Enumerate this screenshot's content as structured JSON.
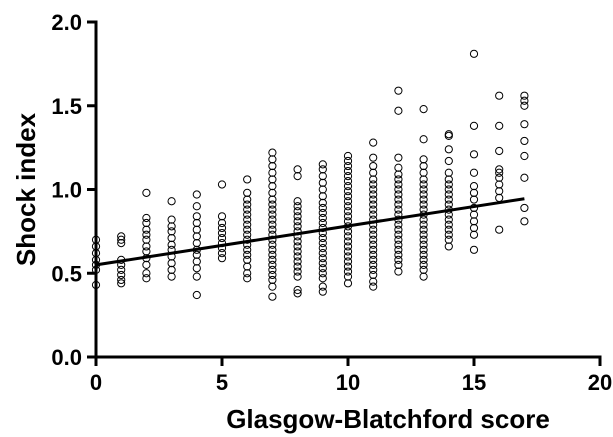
{
  "chart_data": {
    "type": "scatter",
    "title": "",
    "xlabel": "Glasgow-Blatchford score",
    "ylabel": "Shock index",
    "xlim": [
      0,
      20
    ],
    "ylim": [
      0,
      2.0
    ],
    "x_ticks": [
      0,
      5,
      10,
      15,
      20
    ],
    "x_tick_labels": [
      "0",
      "5",
      "10",
      "15",
      "20"
    ],
    "y_ticks": [
      0,
      0.5,
      1.0,
      1.5,
      2.0
    ],
    "y_tick_labels": [
      "0.0",
      "0.5",
      "1.0",
      "1.5",
      "2.0"
    ],
    "grid": false,
    "marker": "open-circle",
    "columns": [
      {
        "x": 0,
        "y": [
          0.43,
          0.52,
          0.55,
          0.58,
          0.62,
          0.66,
          0.7
        ]
      },
      {
        "x": 1,
        "y": [
          0.44,
          0.46,
          0.49,
          0.52,
          0.55,
          0.58,
          0.68,
          0.7,
          0.72
        ]
      },
      {
        "x": 2,
        "y": [
          0.47,
          0.5,
          0.55,
          0.59,
          0.63,
          0.66,
          0.7,
          0.73,
          0.76,
          0.8,
          0.83,
          0.98
        ]
      },
      {
        "x": 3,
        "y": [
          0.48,
          0.52,
          0.56,
          0.6,
          0.64,
          0.67,
          0.71,
          0.75,
          0.78,
          0.82,
          0.93
        ]
      },
      {
        "x": 4,
        "y": [
          0.37,
          0.48,
          0.53,
          0.57,
          0.61,
          0.64,
          0.68,
          0.72,
          0.76,
          0.8,
          0.84,
          0.9,
          0.97
        ]
      },
      {
        "x": 5,
        "y": [
          0.59,
          0.62,
          0.65,
          0.68,
          0.71,
          0.74,
          0.77,
          0.8,
          0.84,
          1.03
        ]
      },
      {
        "x": 6,
        "y": [
          0.47,
          0.5,
          0.54,
          0.58,
          0.61,
          0.64,
          0.67,
          0.7,
          0.73,
          0.76,
          0.79,
          0.82,
          0.85,
          0.88,
          0.91,
          0.94,
          0.98,
          1.06
        ]
      },
      {
        "x": 7,
        "y": [
          0.36,
          0.42,
          0.46,
          0.49,
          0.52,
          0.55,
          0.58,
          0.61,
          0.64,
          0.67,
          0.7,
          0.73,
          0.76,
          0.79,
          0.82,
          0.85,
          0.88,
          0.91,
          0.94,
          0.98,
          1.02,
          1.06,
          1.1,
          1.14,
          1.18,
          1.22
        ]
      },
      {
        "x": 8,
        "y": [
          0.38,
          0.4,
          0.48,
          0.51,
          0.54,
          0.57,
          0.6,
          0.63,
          0.66,
          0.69,
          0.72,
          0.75,
          0.78,
          0.81,
          0.84,
          0.87,
          0.9,
          0.93,
          1.08,
          1.12
        ]
      },
      {
        "x": 9,
        "y": [
          0.39,
          0.42,
          0.47,
          0.5,
          0.53,
          0.56,
          0.59,
          0.62,
          0.65,
          0.68,
          0.71,
          0.74,
          0.77,
          0.8,
          0.83,
          0.86,
          0.89,
          0.92,
          0.96,
          1.0,
          1.04,
          1.08,
          1.12,
          1.15
        ]
      },
      {
        "x": 10,
        "y": [
          0.44,
          0.48,
          0.51,
          0.54,
          0.57,
          0.6,
          0.63,
          0.66,
          0.69,
          0.72,
          0.75,
          0.78,
          0.81,
          0.84,
          0.87,
          0.9,
          0.93,
          0.96,
          0.99,
          1.02,
          1.05,
          1.08,
          1.11,
          1.14,
          1.17,
          1.2
        ]
      },
      {
        "x": 11,
        "y": [
          0.42,
          0.45,
          0.49,
          0.52,
          0.55,
          0.58,
          0.61,
          0.64,
          0.67,
          0.7,
          0.73,
          0.76,
          0.79,
          0.82,
          0.85,
          0.88,
          0.91,
          0.94,
          0.97,
          1.0,
          1.03,
          1.06,
          1.1,
          1.14,
          1.19,
          1.28
        ]
      },
      {
        "x": 12,
        "y": [
          0.51,
          0.55,
          0.58,
          0.61,
          0.64,
          0.67,
          0.7,
          0.73,
          0.76,
          0.79,
          0.82,
          0.85,
          0.88,
          0.91,
          0.94,
          0.97,
          1.0,
          1.03,
          1.06,
          1.09,
          1.13,
          1.19,
          1.47,
          1.59
        ]
      },
      {
        "x": 13,
        "y": [
          0.48,
          0.52,
          0.55,
          0.58,
          0.61,
          0.64,
          0.67,
          0.7,
          0.73,
          0.76,
          0.79,
          0.82,
          0.85,
          0.88,
          0.91,
          0.94,
          0.97,
          1.0,
          1.03,
          1.06,
          1.1,
          1.14,
          1.18,
          1.3,
          1.48
        ]
      },
      {
        "x": 14,
        "y": [
          0.66,
          0.7,
          0.73,
          0.76,
          0.79,
          0.82,
          0.85,
          0.88,
          0.91,
          0.94,
          0.97,
          1.0,
          1.03,
          1.06,
          1.1,
          1.17,
          1.24,
          1.32,
          1.33
        ]
      },
      {
        "x": 15,
        "y": [
          0.64,
          0.73,
          0.77,
          0.81,
          0.85,
          0.89,
          0.94,
          0.98,
          1.02,
          1.1,
          1.21,
          1.38,
          1.81
        ]
      },
      {
        "x": 16,
        "y": [
          0.76,
          0.95,
          0.99,
          1.03,
          1.07,
          1.1,
          1.12,
          1.23,
          1.38,
          1.56
        ]
      },
      {
        "x": 17,
        "y": [
          0.81,
          0.89,
          1.07,
          1.2,
          1.29,
          1.39,
          1.5,
          1.53,
          1.56
        ]
      }
    ],
    "fit_line": {
      "x": [
        0,
        17
      ],
      "y": [
        0.55,
        0.945
      ]
    }
  }
}
